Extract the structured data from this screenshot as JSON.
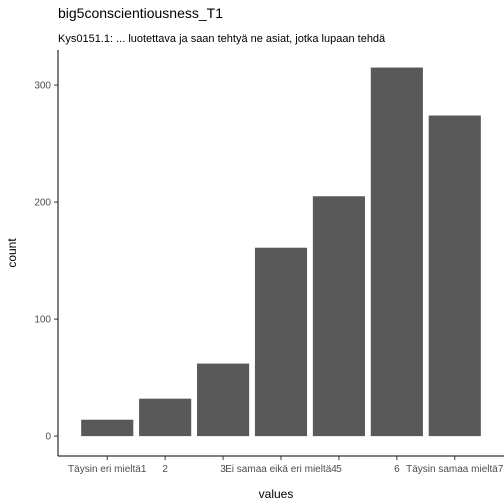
{
  "chart_data": {
    "type": "bar",
    "title": "big5conscientiousness_T1",
    "subtitle": "Kys0151.1: ... luotettava ja saan tehtyä ne asiat, jotka lupaan tehdä",
    "xlabel": "values",
    "ylabel": "count",
    "categories": [
      "Täysin eri mieltä1",
      "2",
      "3",
      "Ei samaa eikä eri mieltä4",
      "5",
      "6",
      "Täysin samaa mieltä7"
    ],
    "values": [
      14,
      32,
      62,
      161,
      205,
      315,
      274
    ],
    "ylim": [
      -17,
      330
    ],
    "yticks": [
      0,
      100,
      200,
      300
    ],
    "bar_color": "#595959",
    "grid": false
  }
}
